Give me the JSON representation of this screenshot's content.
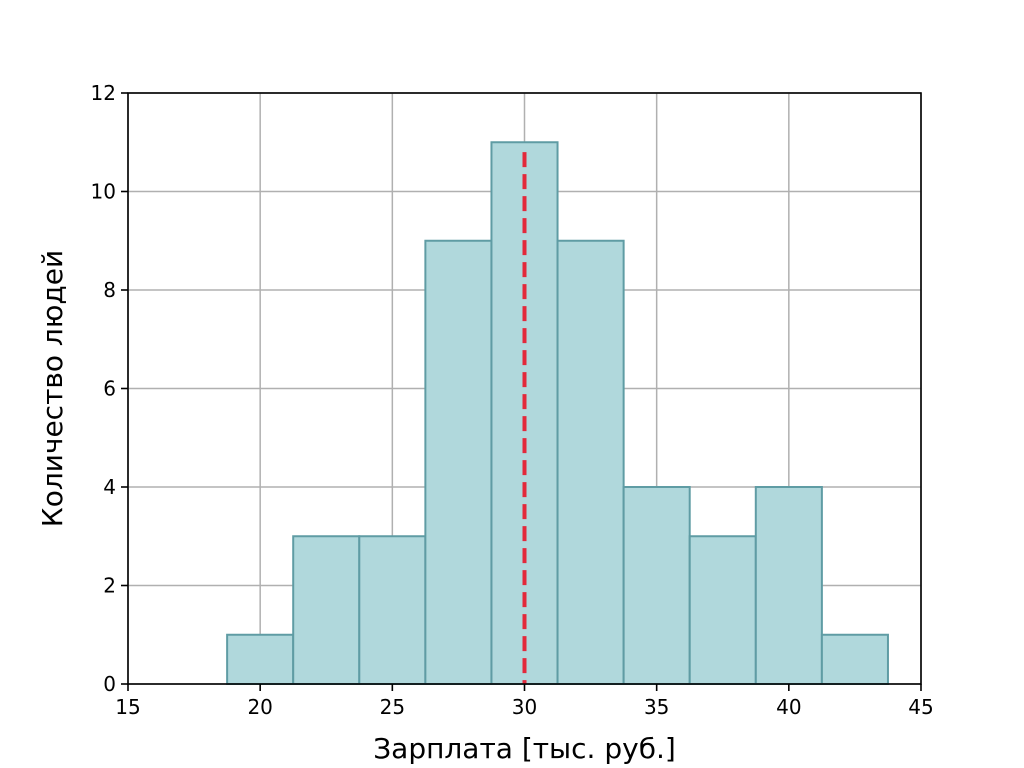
{
  "colors": {
    "bar_fill": "#b0d8dc",
    "bar_edge": "#5f9ca4",
    "grid": "#b0b0b0",
    "mean_line": "#e3293b",
    "axis": "#000000"
  },
  "chart_data": {
    "type": "bar",
    "subtype": "histogram",
    "title": "",
    "xlabel": "Зарплата [тыс. руб.]",
    "ylabel": "Количество людей",
    "xlim": [
      15,
      45
    ],
    "ylim": [
      0,
      12
    ],
    "xticks": [
      15,
      20,
      25,
      30,
      35,
      40,
      45
    ],
    "yticks": [
      0,
      2,
      4,
      6,
      8,
      10,
      12
    ],
    "grid": true,
    "bins": [
      {
        "x0": 18.75,
        "x1": 21.25,
        "count": 1
      },
      {
        "x0": 21.25,
        "x1": 23.75,
        "count": 3
      },
      {
        "x0": 23.75,
        "x1": 26.25,
        "count": 3
      },
      {
        "x0": 26.25,
        "x1": 28.75,
        "count": 9
      },
      {
        "x0": 28.75,
        "x1": 31.25,
        "count": 11
      },
      {
        "x0": 31.25,
        "x1": 33.75,
        "count": 9
      },
      {
        "x0": 33.75,
        "x1": 36.25,
        "count": 4
      },
      {
        "x0": 36.25,
        "x1": 38.75,
        "count": 3
      },
      {
        "x0": 38.75,
        "x1": 41.25,
        "count": 4
      },
      {
        "x0": 41.25,
        "x1": 43.75,
        "count": 1
      }
    ],
    "reference_line": {
      "x": 30,
      "y_top": 10.8,
      "style": "dashed"
    }
  }
}
